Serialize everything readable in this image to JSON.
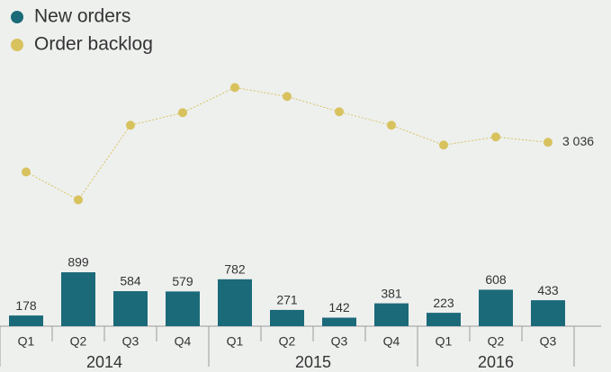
{
  "chart_data": {
    "type": "bar-line",
    "categories": [
      [
        "Q1",
        "2014"
      ],
      [
        "Q2",
        "2014"
      ],
      [
        "Q3",
        "2014"
      ],
      [
        "Q4",
        "2014"
      ],
      [
        "Q1",
        "2015"
      ],
      [
        "Q2",
        "2015"
      ],
      [
        "Q3",
        "2015"
      ],
      [
        "Q4",
        "2015"
      ],
      [
        "Q1",
        "2016"
      ],
      [
        "Q2",
        "2016"
      ],
      [
        "Q3",
        "2016"
      ]
    ],
    "series": [
      {
        "name": "New orders",
        "type": "bar",
        "color": "#1b6a79",
        "values": [
          178,
          899,
          584,
          579,
          782,
          271,
          142,
          381,
          223,
          608,
          433
        ]
      },
      {
        "name": "Order backlog",
        "type": "line",
        "axis": "y2",
        "color": "#d8c25e",
        "values": [
          2706,
          2396,
          3226,
          3366,
          3646,
          3546,
          3376,
          3226,
          3006,
          3096,
          3036
        ],
        "value_labels": [
          null,
          null,
          null,
          null,
          null,
          null,
          null,
          null,
          null,
          null,
          "3 036"
        ]
      }
    ],
    "ylim": [
      0,
      5440
    ],
    "y2lim": [
      990,
      4620
    ],
    "legend": "top-left"
  }
}
